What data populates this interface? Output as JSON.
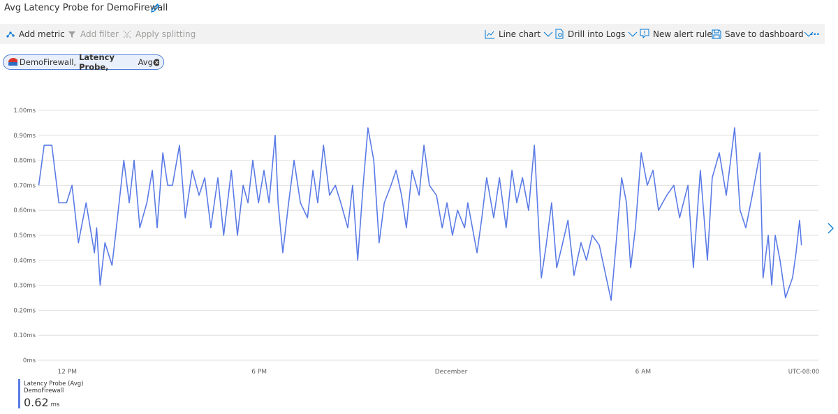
{
  "header": {
    "title": "Avg Latency Probe for DemoFirewall"
  },
  "toolbar": {
    "add_metric": "Add metric",
    "add_filter": "Add filter",
    "apply_splitting": "Apply splitting",
    "line_chart": "Line chart",
    "drill_into_logs": "Drill into Logs",
    "new_alert_rule": "New alert rule",
    "save_to_dashboard": "Save to dashboard",
    "more": "···"
  },
  "pill": {
    "resource": "DemoFirewall,",
    "metric": "Latency Probe,",
    "aggregation": "Avg"
  },
  "chart_data": {
    "type": "line",
    "x": [
      11.11,
      11.28,
      11.52,
      11.74,
      11.98,
      12.15,
      12.35,
      12.59,
      12.85,
      12.92,
      13.03,
      13.18,
      13.4,
      13.51,
      13.77,
      13.94,
      14.09,
      14.27,
      14.49,
      14.66,
      14.81,
      14.99,
      15.14,
      15.29,
      15.51,
      15.69,
      15.91,
      16.12,
      16.3,
      16.49,
      16.71,
      16.89,
      17.13,
      17.32,
      17.5,
      17.65,
      17.8,
      17.98,
      18.15,
      18.31,
      18.5,
      18.59,
      18.74,
      18.92,
      19.09,
      19.29,
      19.51,
      19.68,
      19.83,
      20.01,
      20.2,
      20.38,
      20.55,
      20.77,
      20.92,
      21.08,
      21.25,
      21.4,
      21.58,
      21.75,
      21.91,
      22.12,
      22.28,
      22.45,
      22.6,
      22.78,
      23.0,
      23.15,
      23.32,
      23.54,
      23.72,
      23.87,
      24.04,
      24.2,
      24.42,
      24.52,
      24.81,
      24.96,
      25.11,
      25.33,
      25.51,
      25.72,
      25.9,
      26.05,
      26.23,
      26.42,
      26.6,
      26.82,
      26.97,
      27.14,
      27.3,
      27.47,
      27.65,
      27.84,
      28.06,
      28.23,
      28.41,
      28.63,
      28.8,
      29.0,
      29.11,
      29.33,
      29.48,
      29.61,
      29.76,
      29.94,
      30.13,
      30.31,
      30.48,
      30.74,
      30.96,
      31.14,
      31.4,
      31.57,
      31.79,
      32.01,
      32.16,
      32.38,
      32.6,
      32.86,
      33.03,
      33.21,
      33.41,
      33.65,
      33.75,
      33.91,
      34.02,
      34.13,
      34.28,
      34.45,
      34.67,
      34.78,
      34.89,
      34.95
    ],
    "series": [
      {
        "name": "Latency Probe (Avg)",
        "resource": "DemoFirewall",
        "color": "#5b7be6",
        "summary": 0.62,
        "unit": "ms",
        "values": [
          0.7,
          0.86,
          0.86,
          0.63,
          0.63,
          0.7,
          0.47,
          0.63,
          0.43,
          0.53,
          0.3,
          0.47,
          0.38,
          0.5,
          0.8,
          0.63,
          0.8,
          0.53,
          0.63,
          0.76,
          0.53,
          0.83,
          0.7,
          0.7,
          0.86,
          0.57,
          0.76,
          0.66,
          0.73,
          0.53,
          0.73,
          0.5,
          0.76,
          0.5,
          0.7,
          0.63,
          0.8,
          0.63,
          0.76,
          0.63,
          0.9,
          0.63,
          0.43,
          0.63,
          0.8,
          0.63,
          0.57,
          0.76,
          0.63,
          0.86,
          0.66,
          0.7,
          0.63,
          0.53,
          0.7,
          0.4,
          0.7,
          0.93,
          0.8,
          0.47,
          0.63,
          0.7,
          0.76,
          0.66,
          0.53,
          0.76,
          0.66,
          0.86,
          0.7,
          0.66,
          0.53,
          0.63,
          0.5,
          0.6,
          0.53,
          0.63,
          0.43,
          0.57,
          0.73,
          0.57,
          0.73,
          0.53,
          0.76,
          0.63,
          0.73,
          0.6,
          0.86,
          0.33,
          0.46,
          0.63,
          0.37,
          0.46,
          0.56,
          0.34,
          0.47,
          0.4,
          0.5,
          0.46,
          0.36,
          0.24,
          0.4,
          0.73,
          0.63,
          0.37,
          0.53,
          0.83,
          0.7,
          0.76,
          0.6,
          0.66,
          0.7,
          0.57,
          0.7,
          0.37,
          0.76,
          0.4,
          0.73,
          0.83,
          0.66,
          0.93,
          0.6,
          0.53,
          0.66,
          0.83,
          0.33,
          0.5,
          0.3,
          0.5,
          0.4,
          0.25,
          0.33,
          0.43,
          0.56,
          0.46
        ]
      }
    ],
    "xlim": [
      11.1,
      35.48
    ],
    "xticks": [
      {
        "value": 12,
        "label": "12 PM"
      },
      {
        "value": 18,
        "label": "6 PM"
      },
      {
        "value": 24,
        "label": "December"
      },
      {
        "value": 30,
        "label": "6 AM"
      }
    ],
    "timezone": "UTC-08:00",
    "ylim": [
      0,
      1
    ],
    "yticks": [
      {
        "value": 0,
        "label": "0ms"
      },
      {
        "value": 0.1,
        "label": "0.10ms"
      },
      {
        "value": 0.2,
        "label": "0.20ms"
      },
      {
        "value": 0.3,
        "label": "0.30ms"
      },
      {
        "value": 0.4,
        "label": "0.40ms"
      },
      {
        "value": 0.5,
        "label": "0.50ms"
      },
      {
        "value": 0.6,
        "label": "0.60ms"
      },
      {
        "value": 0.7,
        "label": "0.70ms"
      },
      {
        "value": 0.8,
        "label": "0.80ms"
      },
      {
        "value": 0.9,
        "label": "0.90ms"
      },
      {
        "value": 1,
        "label": "1.00ms"
      }
    ],
    "grid": true
  }
}
